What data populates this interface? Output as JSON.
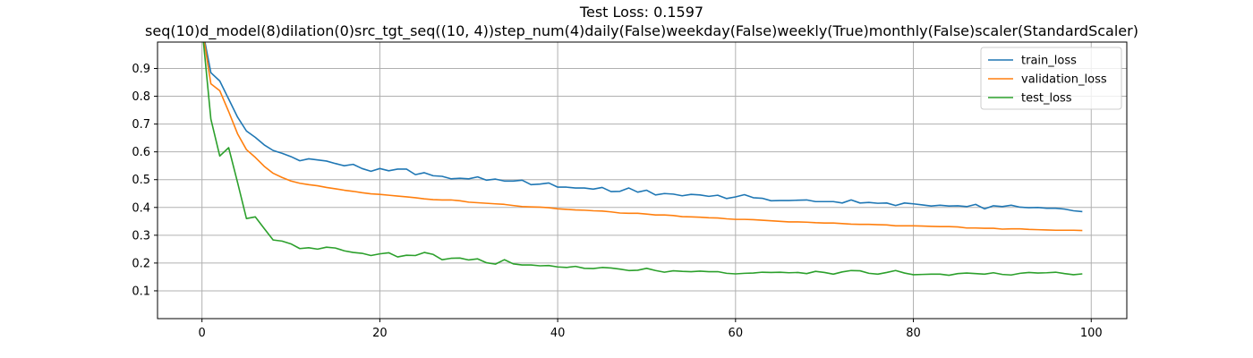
{
  "chart_data": {
    "type": "line",
    "title": "Test Loss: 0.1597",
    "subtitle": "seq(10)d_model(8)dilation(0)src_tgt_seq((10, 4))step_num(4)daily(False)weekday(False)weekly(True)monthly(False)scaler(StandardScaler)",
    "xlabel": "",
    "ylabel": "",
    "xlim": [
      -5,
      104
    ],
    "ylim": [
      0.0,
      0.995
    ],
    "xticks": [
      0,
      20,
      40,
      60,
      80,
      100
    ],
    "yticks": [
      0.1,
      0.2,
      0.3,
      0.4,
      0.5,
      0.6,
      0.7,
      0.8,
      0.9
    ],
    "grid": true,
    "legend_position": "top-right",
    "series": [
      {
        "name": "train_loss",
        "color": "#1f77b4",
        "values": [
          1.05,
          0.885,
          0.855,
          0.79,
          0.725,
          0.675,
          0.652,
          0.625,
          0.605,
          0.595,
          0.583,
          0.568,
          0.575,
          0.571,
          0.567,
          0.558,
          0.55,
          0.555,
          0.54,
          0.53,
          0.54,
          0.532,
          0.538,
          0.538,
          0.518,
          0.525,
          0.514,
          0.512,
          0.503,
          0.505,
          0.503,
          0.51,
          0.498,
          0.502,
          0.495,
          0.495,
          0.498,
          0.482,
          0.484,
          0.488,
          0.473,
          0.473,
          0.47,
          0.47,
          0.466,
          0.472,
          0.457,
          0.458,
          0.47,
          0.455,
          0.462,
          0.445,
          0.45,
          0.448,
          0.442,
          0.447,
          0.445,
          0.44,
          0.444,
          0.432,
          0.438,
          0.446,
          0.435,
          0.433,
          0.424,
          0.425,
          0.425,
          0.426,
          0.427,
          0.421,
          0.421,
          0.421,
          0.416,
          0.427,
          0.416,
          0.418,
          0.415,
          0.416,
          0.407,
          0.416,
          0.413,
          0.409,
          0.405,
          0.408,
          0.405,
          0.406,
          0.403,
          0.411,
          0.395,
          0.406,
          0.403,
          0.408,
          0.401,
          0.399,
          0.4,
          0.397,
          0.397,
          0.394,
          0.388,
          0.385
        ]
      },
      {
        "name": "validation_loss",
        "color": "#ff7f0e",
        "values": [
          1.05,
          0.845,
          0.82,
          0.745,
          0.665,
          0.608,
          0.58,
          0.548,
          0.523,
          0.508,
          0.495,
          0.487,
          0.482,
          0.478,
          0.472,
          0.467,
          0.462,
          0.458,
          0.453,
          0.449,
          0.447,
          0.444,
          0.441,
          0.438,
          0.435,
          0.431,
          0.428,
          0.427,
          0.427,
          0.424,
          0.419,
          0.417,
          0.415,
          0.413,
          0.411,
          0.407,
          0.403,
          0.402,
          0.401,
          0.399,
          0.395,
          0.393,
          0.391,
          0.39,
          0.388,
          0.387,
          0.384,
          0.38,
          0.379,
          0.379,
          0.376,
          0.373,
          0.373,
          0.371,
          0.367,
          0.366,
          0.365,
          0.363,
          0.362,
          0.359,
          0.357,
          0.357,
          0.356,
          0.354,
          0.352,
          0.35,
          0.348,
          0.348,
          0.347,
          0.345,
          0.344,
          0.344,
          0.342,
          0.34,
          0.339,
          0.339,
          0.338,
          0.337,
          0.334,
          0.334,
          0.334,
          0.333,
          0.332,
          0.331,
          0.331,
          0.33,
          0.326,
          0.326,
          0.325,
          0.325,
          0.322,
          0.323,
          0.323,
          0.321,
          0.32,
          0.319,
          0.318,
          0.318,
          0.318,
          0.317
        ]
      },
      {
        "name": "test_loss",
        "color": "#2ca02c",
        "values": [
          1.05,
          0.718,
          0.585,
          0.615,
          0.49,
          0.36,
          0.366,
          0.324,
          0.283,
          0.279,
          0.269,
          0.252,
          0.255,
          0.25,
          0.257,
          0.254,
          0.244,
          0.238,
          0.235,
          0.227,
          0.233,
          0.237,
          0.222,
          0.228,
          0.227,
          0.238,
          0.231,
          0.212,
          0.217,
          0.218,
          0.211,
          0.215,
          0.201,
          0.196,
          0.212,
          0.197,
          0.193,
          0.193,
          0.19,
          0.191,
          0.186,
          0.184,
          0.188,
          0.181,
          0.18,
          0.184,
          0.182,
          0.178,
          0.173,
          0.174,
          0.181,
          0.173,
          0.167,
          0.172,
          0.17,
          0.169,
          0.171,
          0.169,
          0.169,
          0.163,
          0.161,
          0.163,
          0.164,
          0.167,
          0.166,
          0.167,
          0.165,
          0.166,
          0.162,
          0.17,
          0.166,
          0.16,
          0.168,
          0.173,
          0.172,
          0.163,
          0.16,
          0.166,
          0.173,
          0.164,
          0.158,
          0.159,
          0.16,
          0.16,
          0.156,
          0.162,
          0.164,
          0.162,
          0.16,
          0.165,
          0.159,
          0.157,
          0.163,
          0.166,
          0.164,
          0.165,
          0.167,
          0.162,
          0.158,
          0.161
        ]
      }
    ]
  }
}
